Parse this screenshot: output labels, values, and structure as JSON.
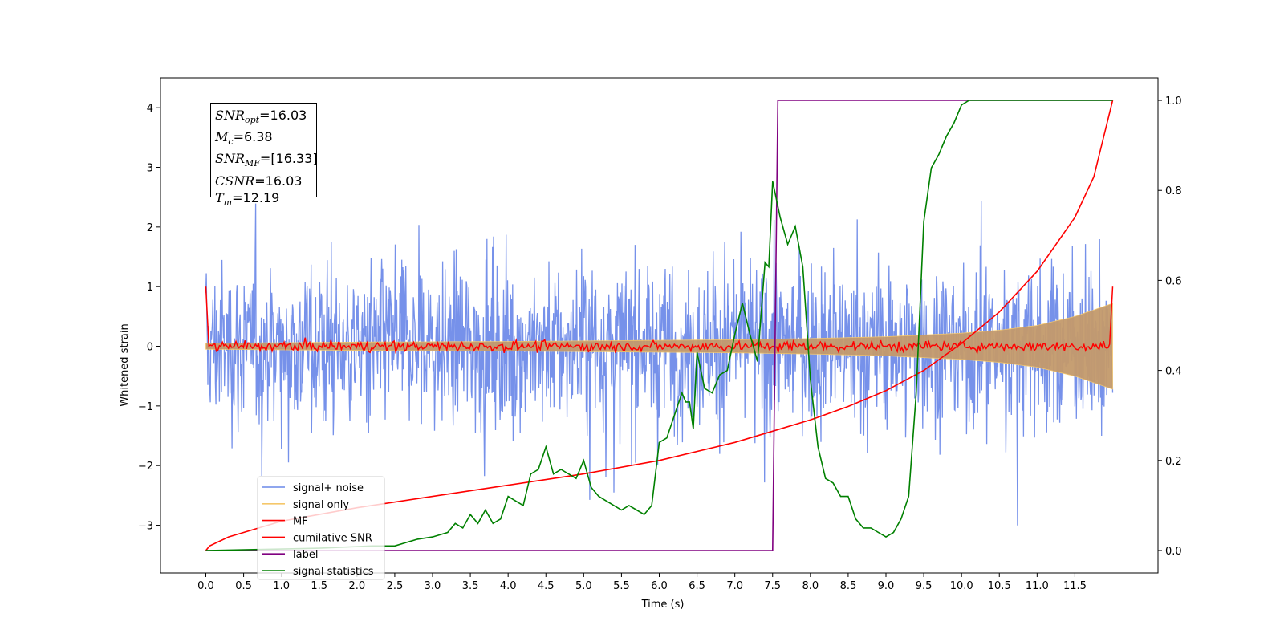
{
  "chart_data": {
    "type": "line",
    "xlabel": "Time (s)",
    "ylabel_left": "Whitened strain",
    "ylabel_right": "",
    "x_ticks": [
      "0.0",
      "0.5",
      "1.0",
      "1.5",
      "2.0",
      "2.5",
      "3.0",
      "3.5",
      "4.0",
      "4.5",
      "5.0",
      "5.5",
      "6.0",
      "6.5",
      "7.0",
      "7.5",
      "8.0",
      "8.5",
      "9.0",
      "9.5",
      "10.0",
      "10.5",
      "11.0",
      "11.5"
    ],
    "y_left_ticks": [
      "−3",
      "−2",
      "−1",
      "0",
      "1",
      "2",
      "3",
      "4"
    ],
    "y_right_ticks": [
      "0.0",
      "0.2",
      "0.4",
      "0.6",
      "0.8",
      "1.0"
    ],
    "xlim": [
      -0.6,
      12.6
    ],
    "ylim_left": [
      -3.8,
      4.5
    ],
    "ylim_right": [
      -0.05,
      1.05
    ],
    "legend_position": "lower-left",
    "colors": {
      "signal_noise": "#6a88e8",
      "signal_only": "#f5c76a",
      "mf": "#ff0000",
      "cumulative_snr": "#ff0000",
      "label": "#800080",
      "signal_statistics": "#008000",
      "envelope_fill": "#c49a6c"
    },
    "series": [
      {
        "name": "signal+ noise",
        "axis": "left",
        "style": "noise",
        "x_range": [
          0,
          12
        ],
        "amplitude": 1.0
      },
      {
        "name": "signal only",
        "axis": "left",
        "style": "chirp_envelope",
        "x": [
          0,
          2,
          4,
          6,
          7,
          8,
          9,
          10,
          10.5,
          11,
          11.5,
          12
        ],
        "amplitude": [
          0.05,
          0.07,
          0.08,
          0.1,
          0.11,
          0.13,
          0.16,
          0.22,
          0.27,
          0.35,
          0.5,
          0.72
        ]
      },
      {
        "name": "MF",
        "axis": "left",
        "style": "noise_small",
        "x_range": [
          0,
          12
        ],
        "amplitude": 0.06,
        "start_value": 1.0,
        "end_value": 1.0
      },
      {
        "name": "cumilative SNR",
        "axis": "right",
        "x": [
          0,
          0.05,
          0.3,
          0.7,
          1.0,
          1.5,
          2.0,
          3.0,
          4.0,
          5.0,
          6.0,
          7.0,
          7.5,
          8.0,
          8.5,
          9.0,
          9.5,
          10.0,
          10.5,
          11.0,
          11.5,
          11.75,
          12.0
        ],
        "y": [
          0.0,
          0.01,
          0.03,
          0.05,
          0.065,
          0.08,
          0.095,
          0.12,
          0.145,
          0.17,
          0.2,
          0.24,
          0.265,
          0.29,
          0.32,
          0.355,
          0.4,
          0.46,
          0.53,
          0.62,
          0.74,
          0.83,
          1.0
        ]
      },
      {
        "name": "label",
        "axis": "right",
        "x": [
          0,
          7.5,
          7.57,
          12
        ],
        "y": [
          0,
          0,
          1,
          1
        ]
      },
      {
        "name": "signal statistics",
        "axis": "right",
        "x": [
          0,
          1.5,
          2.2,
          2.5,
          2.8,
          3.0,
          3.2,
          3.3,
          3.4,
          3.5,
          3.6,
          3.7,
          3.8,
          3.9,
          4.0,
          4.1,
          4.2,
          4.3,
          4.4,
          4.5,
          4.6,
          4.7,
          4.8,
          4.9,
          5.0,
          5.1,
          5.2,
          5.3,
          5.4,
          5.5,
          5.6,
          5.7,
          5.8,
          5.9,
          6.0,
          6.1,
          6.2,
          6.3,
          6.35,
          6.4,
          6.45,
          6.5,
          6.6,
          6.7,
          6.8,
          6.9,
          7.0,
          7.1,
          7.2,
          7.3,
          7.4,
          7.45,
          7.5,
          7.6,
          7.7,
          7.8,
          7.9,
          8.0,
          8.1,
          8.2,
          8.3,
          8.4,
          8.5,
          8.6,
          8.7,
          8.8,
          8.9,
          9.0,
          9.1,
          9.2,
          9.3,
          9.4,
          9.5,
          9.6,
          9.7,
          9.8,
          9.9,
          10.0,
          10.1,
          10.5,
          11.0,
          11.5,
          12.0
        ],
        "y": [
          0.0,
          0.005,
          0.01,
          0.01,
          0.025,
          0.03,
          0.04,
          0.06,
          0.05,
          0.08,
          0.06,
          0.09,
          0.06,
          0.07,
          0.12,
          0.11,
          0.1,
          0.17,
          0.18,
          0.23,
          0.17,
          0.18,
          0.17,
          0.16,
          0.2,
          0.14,
          0.12,
          0.11,
          0.1,
          0.09,
          0.1,
          0.09,
          0.08,
          0.1,
          0.24,
          0.25,
          0.3,
          0.35,
          0.33,
          0.33,
          0.27,
          0.44,
          0.36,
          0.35,
          0.39,
          0.4,
          0.48,
          0.55,
          0.48,
          0.42,
          0.64,
          0.63,
          0.82,
          0.74,
          0.68,
          0.72,
          0.63,
          0.38,
          0.23,
          0.16,
          0.15,
          0.12,
          0.12,
          0.07,
          0.05,
          0.05,
          0.04,
          0.03,
          0.04,
          0.07,
          0.12,
          0.35,
          0.73,
          0.85,
          0.88,
          0.92,
          0.95,
          0.99,
          1.0,
          1.0,
          1.0,
          1.0,
          1.0
        ]
      }
    ],
    "annotation": {
      "lines": [
        {
          "sym": "SNR",
          "sub": "opt",
          "value": "=16.03"
        },
        {
          "sym": "M",
          "sub": "c",
          "value": "=6.38"
        },
        {
          "sym": "SNR",
          "sub": "MF",
          "value": "=[16.33]"
        },
        {
          "sym": "CSNR",
          "sub": "",
          "value": "=16.03"
        },
        {
          "sym": "T",
          "sub": "m",
          "value": "=12.19"
        }
      ]
    },
    "legend": [
      "signal+ noise",
      "signal only",
      "MF",
      "cumilative SNR",
      "label",
      "signal statistics"
    ]
  }
}
